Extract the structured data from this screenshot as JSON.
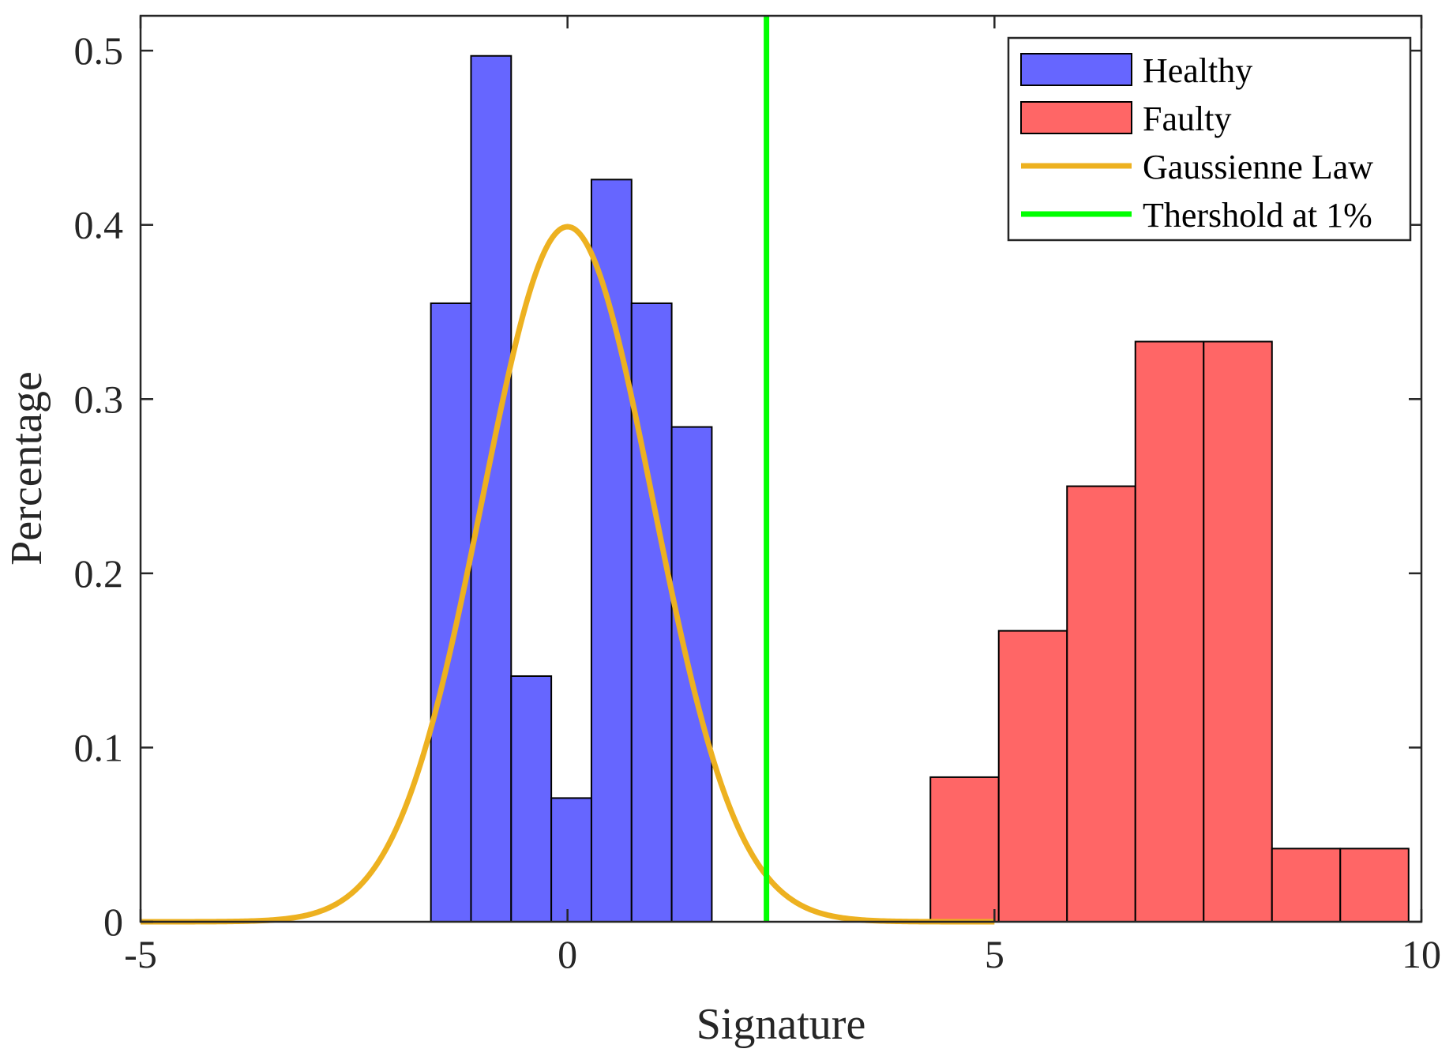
{
  "chart_data": {
    "type": "bar",
    "xlabel": "Signature",
    "ylabel": "Percentage",
    "xlim": [
      -5,
      10
    ],
    "ylim": [
      0,
      0.52
    ],
    "x_ticks": [
      -5,
      0,
      5,
      10
    ],
    "x_tick_labels": [
      "-5",
      "0",
      "5",
      "10"
    ],
    "y_ticks": [
      0,
      0.1,
      0.2,
      0.3,
      0.4,
      0.5
    ],
    "y_tick_labels": [
      "0",
      "0.1",
      "0.2",
      "0.3",
      "0.4",
      "0.5"
    ],
    "grid": false,
    "legend_position": "top-right",
    "series": [
      {
        "name": "Healthy",
        "kind": "histogram",
        "color": "#6666FF",
        "bin_edges": [
          -1.6,
          -1.13,
          -0.66,
          -0.19,
          0.28,
          0.75,
          1.22,
          1.69
        ],
        "values": [
          0.355,
          0.497,
          0.141,
          0.071,
          0.426,
          0.355,
          0.284
        ]
      },
      {
        "name": "Faulty",
        "kind": "histogram",
        "color": "#FF6666",
        "bin_edges": [
          4.25,
          5.05,
          5.85,
          6.65,
          7.45,
          8.25,
          9.05,
          9.85
        ],
        "values": [
          0.083,
          0.167,
          0.25,
          0.333,
          0.333,
          0.042,
          0.042
        ]
      },
      {
        "name": "Gaussienne Law",
        "kind": "line",
        "color": "#EDB120",
        "distribution": {
          "mean": 0,
          "std": 1,
          "x_range": [
            -5,
            5
          ]
        }
      },
      {
        "name": "Thershold at 1%",
        "kind": "vline",
        "color": "#00FF00",
        "x": 2.33
      }
    ]
  }
}
